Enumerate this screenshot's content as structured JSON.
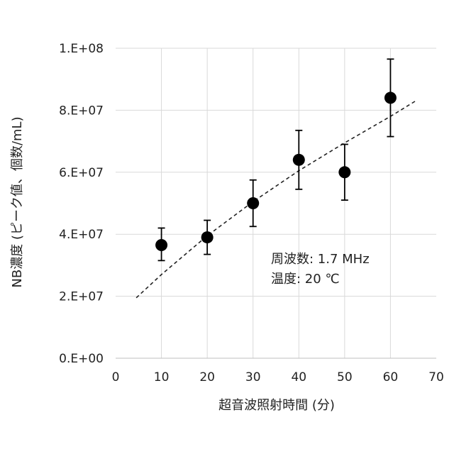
{
  "chart_data": {
    "type": "scatter",
    "xlabel": "超音波照射時間 (分)",
    "ylabel": "NB濃度 (ピーク値、個数/mL)",
    "xlim": [
      0,
      70
    ],
    "ylim": [
      0,
      100000000
    ],
    "x_ticks": [
      {
        "value": 0,
        "label": "0"
      },
      {
        "value": 10,
        "label": "10"
      },
      {
        "value": 20,
        "label": "20"
      },
      {
        "value": 30,
        "label": "30"
      },
      {
        "value": 40,
        "label": "40"
      },
      {
        "value": 50,
        "label": "50"
      },
      {
        "value": 60,
        "label": "60"
      },
      {
        "value": 70,
        "label": "70"
      }
    ],
    "y_ticks": [
      {
        "value": 0,
        "label": "0.E+00"
      },
      {
        "value": 20000000,
        "label": "2.E+07"
      },
      {
        "value": 40000000,
        "label": "4.E+07"
      },
      {
        "value": 60000000,
        "label": "6.E+07"
      },
      {
        "value": 80000000,
        "label": "8.E+07"
      },
      {
        "value": 100000000,
        "label": "1.E+08"
      }
    ],
    "grid": true,
    "points": [
      {
        "x": 10,
        "y": 36500000,
        "err_low": 31500000,
        "err_high": 42000000
      },
      {
        "x": 20,
        "y": 39000000,
        "err_low": 33500000,
        "err_high": 44500000
      },
      {
        "x": 30,
        "y": 50000000,
        "err_low": 42500000,
        "err_high": 57500000
      },
      {
        "x": 40,
        "y": 64000000,
        "err_low": 54500000,
        "err_high": 73500000
      },
      {
        "x": 50,
        "y": 60000000,
        "err_low": 51000000,
        "err_high": 69000000
      },
      {
        "x": 60,
        "y": 84000000,
        "err_low": 71500000,
        "err_high": 96500000
      }
    ],
    "trend_line": {
      "style": "dashed",
      "x": [
        4.5,
        10,
        20,
        30,
        40,
        50,
        60,
        65.5
      ],
      "y": [
        19500000,
        27000000,
        39500000,
        50500000,
        60500000,
        69500000,
        78000000,
        83000000
      ]
    },
    "annotations": [
      {
        "text": "周波数: 1.7 MHz"
      },
      {
        "text": "温度:  20 ℃"
      }
    ]
  }
}
